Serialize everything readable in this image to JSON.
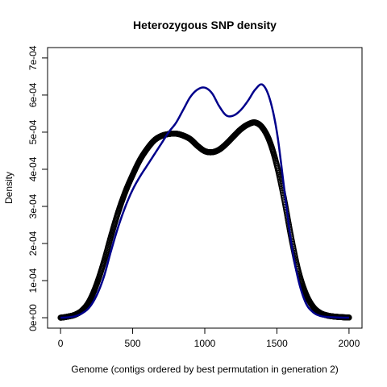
{
  "chart_data": {
    "type": "line",
    "title": "Heterozygous SNP density",
    "xlabel": "Genome (contigs ordered by best permutation in generation 2)",
    "ylabel": "Density",
    "xlim": [
      -90,
      2090
    ],
    "ylim": [
      -2.81e-05,
      0.000728
    ],
    "x_ticks": [
      0,
      500,
      1000,
      1500,
      2000
    ],
    "x_tick_labels": [
      "0",
      "500",
      "1000",
      "1500",
      "2000"
    ],
    "y_ticks": [
      0,
      0.0001,
      0.0002,
      0.0003,
      0.0004,
      0.0005,
      0.0006,
      0.0007
    ],
    "y_tick_labels": [
      "0e+00",
      "1e-04",
      "2e-04",
      "3e-04",
      "4e-04",
      "5e-04",
      "6e-04",
      "7e-04"
    ],
    "grid": false,
    "series": [
      {
        "style": "points",
        "color": "#000000",
        "x": [
          0,
          50,
          100,
          150,
          200,
          250,
          300,
          350,
          400,
          450,
          500,
          550,
          600,
          650,
          700,
          750,
          800,
          850,
          900,
          950,
          1000,
          1050,
          1100,
          1150,
          1200,
          1250,
          1300,
          1350,
          1400,
          1450,
          1500,
          1550,
          1600,
          1650,
          1700,
          1750,
          1800,
          1850,
          1900,
          1950,
          2000
        ],
        "y": [
          1e-07,
          3e-06,
          8e-06,
          2e-05,
          4.5e-05,
          9e-05,
          0.00015,
          0.00022,
          0.000285,
          0.00034,
          0.000385,
          0.000425,
          0.000455,
          0.000478,
          0.00049,
          0.000495,
          0.000496,
          0.000491,
          0.000481,
          0.000463,
          0.000449,
          0.000446,
          0.000453,
          0.000469,
          0.000489,
          0.000508,
          0.000521,
          0.000526,
          0.000512,
          0.000475,
          0.00041,
          0.00032,
          0.000215,
          0.000125,
          6.5e-05,
          3e-05,
          1.3e-05,
          6e-06,
          3e-06,
          1.5e-06,
          5e-07
        ]
      },
      {
        "style": "line",
        "color": "#00008B",
        "x": [
          0,
          50,
          100,
          150,
          200,
          250,
          300,
          350,
          400,
          450,
          500,
          550,
          600,
          650,
          700,
          750,
          800,
          850,
          900,
          950,
          1000,
          1050,
          1100,
          1150,
          1200,
          1250,
          1300,
          1350,
          1400,
          1450,
          1500,
          1550,
          1600,
          1650,
          1700,
          1750,
          1800,
          1850,
          1900,
          1950,
          2000
        ],
        "y": [
          1e-07,
          1e-06,
          4e-06,
          1.2e-05,
          2.8e-05,
          6e-05,
          0.00011,
          0.00018,
          0.000245,
          0.0003,
          0.000345,
          0.00038,
          0.00041,
          0.00044,
          0.00047,
          0.0005,
          0.000525,
          0.00056,
          0.000595,
          0.000615,
          0.00062,
          0.000605,
          0.00057,
          0.000545,
          0.000545,
          0.00056,
          0.000585,
          0.000615,
          0.000628,
          0.00059,
          0.0005,
          0.00035,
          0.0002,
          0.0001,
          4e-05,
          1.5e-05,
          5e-06,
          2e-06,
          1e-06,
          3e-07,
          1e-07
        ]
      }
    ]
  }
}
